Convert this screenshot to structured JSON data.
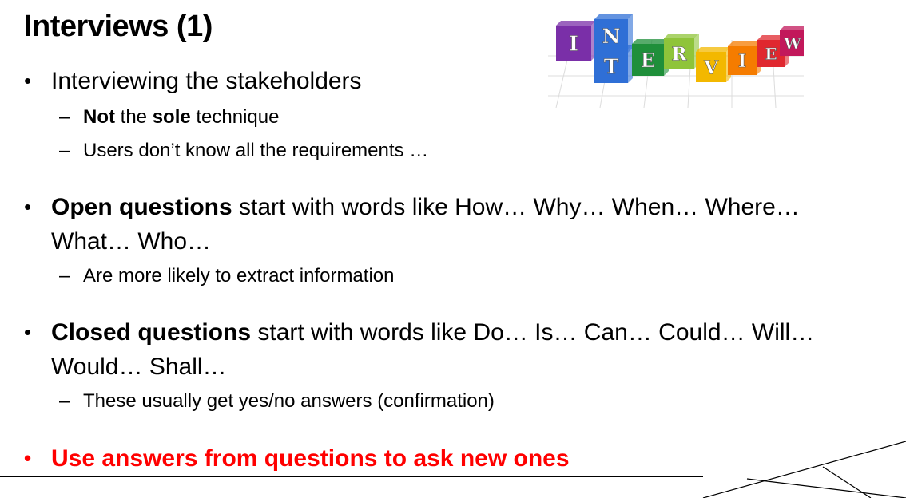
{
  "slide": {
    "title": "Interviews (1)",
    "bullets": [
      {
        "text": "Interviewing the stakeholders",
        "subs": [
          {
            "b1": "Not",
            "t1": " the ",
            "b2": "sole",
            "t2": " technique"
          },
          {
            "text": "Users don’t know all the requirements …"
          }
        ]
      },
      {
        "bold": "Open questions",
        "rest": " start with words like How… Why… When… Where… What… Who…",
        "subs": [
          {
            "text": "Are more likely to extract information"
          }
        ]
      },
      {
        "bold": "Closed questions",
        "rest": " start with words like Do… Is… Can… Could… Will… Would… Shall…",
        "subs": [
          {
            "text": "These usually get yes/no answers (confirmation)"
          }
        ]
      },
      {
        "text": "Use answers from questions to ask new ones",
        "color": "#ff0000"
      }
    ]
  },
  "interview_logo": {
    "letters": [
      "I",
      "N",
      "T",
      "E",
      "R",
      "V",
      "I",
      "E",
      "W"
    ],
    "colors": [
      "#7a2fa8",
      "#2f6fd6",
      "#1f8f3a",
      "#8fc43a",
      "#f3b800",
      "#f57c00",
      "#e0282f",
      "#c2185b"
    ]
  },
  "bullet_char": "•",
  "dash_char": "–"
}
